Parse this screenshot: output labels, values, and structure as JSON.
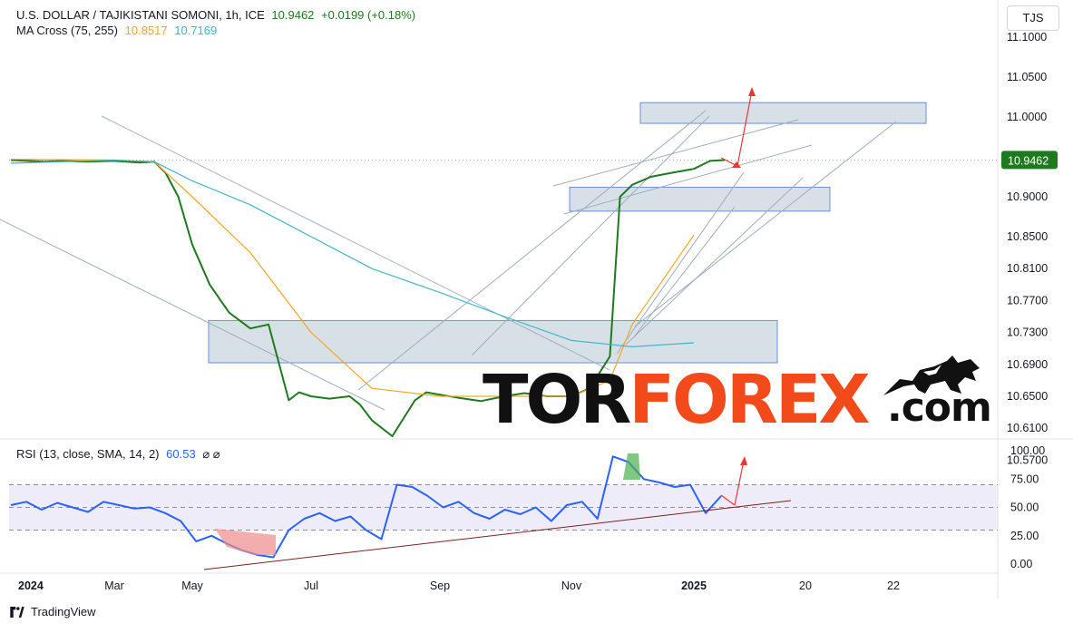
{
  "legend": {
    "symbol": "U.S. DOLLAR / TAJIKISTANI SOMONI, 1h, ICE",
    "last": "10.9462",
    "change": "+0.0199 (+0.18%)",
    "ma_label": "MA Cross (75, 255)",
    "ma_fast": "10.8517",
    "ma_slow": "10.7169",
    "rsi_label": "RSI (13, close, SMA, 14, 2)",
    "rsi_value": "60.53",
    "rsi_extra": "⌀ ⌀"
  },
  "currency_button": "TJS",
  "brand": "TradingView",
  "watermark": {
    "tor": "TOR",
    "forex": "FOREX",
    "com": ".com"
  },
  "colors": {
    "price": "#1e7a1e",
    "ma_fast": "#f5a623",
    "ma_slow": "#3fb6c8",
    "rsi": "#2962ff",
    "trendline": "#9eadbd",
    "zone": "#b8c7d3",
    "arrow": "#e53935",
    "rsi_trend": "#7b1f1f"
  },
  "chart_data": [
    {
      "type": "line",
      "title": "U.S. DOLLAR / TAJIKISTANI SOMONI, 1h, ICE",
      "x_ticks": [
        "2024",
        "Mar",
        "May",
        "Jul",
        "Sep",
        "Nov",
        "2025",
        "20",
        "22"
      ],
      "y_ticks": [
        "11.1000",
        "11.0500",
        "11.0000",
        "10.9000",
        "10.8500",
        "10.8100",
        "10.7700",
        "10.7300",
        "10.6900",
        "10.6500",
        "10.6100",
        "10.5700"
      ],
      "last_price_label": "10.9462",
      "series": [
        {
          "name": "U.S. DOLLAR / TAJIKISTANI SOMONI",
          "x": [
            "2024-01",
            "2024-01-20",
            "2024-02",
            "2024-02-15",
            "2024-03",
            "2024-03-20",
            "2024-04",
            "2024-04-10",
            "2024-04-20",
            "2024-05",
            "2024-05-10",
            "2024-05-20",
            "2024-06",
            "2024-06-10",
            "2024-06-20",
            "2024-06-25",
            "2024-07",
            "2024-07-10",
            "2024-07-20",
            "2024-07-25",
            "2024-08",
            "2024-08-10",
            "2024-08-20",
            "2024-08-25",
            "2024-09",
            "2024-09-10",
            "2024-09-20",
            "2024-10",
            "2024-10-10",
            "2024-10-20",
            "2024-11",
            "2024-11-10",
            "2024-11-20",
            "2024-11-25",
            "2024-12",
            "2024-12-10",
            "2024-12-20",
            "2025-01",
            "2025-01-10",
            "2025-01-18"
          ],
          "values": [
            10.946,
            10.944,
            10.945,
            10.944,
            10.945,
            10.943,
            10.944,
            10.93,
            10.9,
            10.84,
            10.79,
            10.755,
            10.735,
            10.74,
            10.645,
            10.655,
            10.65,
            10.647,
            10.65,
            10.64,
            10.62,
            10.6,
            10.645,
            10.655,
            10.652,
            10.648,
            10.644,
            10.65,
            10.654,
            10.65,
            10.65,
            10.66,
            10.7,
            10.9,
            10.915,
            10.925,
            10.93,
            10.935,
            10.945,
            10.946
          ]
        },
        {
          "name": "MA 75",
          "x": [
            "2024-01",
            "2024-03",
            "2024-04",
            "2024-05",
            "2024-06",
            "2024-07",
            "2024-08",
            "2024-09",
            "2024-10",
            "2024-11",
            "2024-11-20",
            "2024-12",
            "2025-01"
          ],
          "values": [
            10.947,
            10.946,
            10.944,
            10.9,
            10.83,
            10.73,
            10.66,
            10.65,
            10.65,
            10.65,
            10.67,
            10.74,
            10.852
          ]
        },
        {
          "name": "MA 255",
          "x": [
            "2024-01",
            "2024-03",
            "2024-04",
            "2024-05",
            "2024-06",
            "2024-07",
            "2024-08",
            "2024-09",
            "2024-10",
            "2024-11",
            "2024-12",
            "2025-01"
          ],
          "values": [
            10.942,
            10.946,
            10.944,
            10.92,
            10.89,
            10.85,
            10.81,
            10.78,
            10.75,
            10.72,
            10.712,
            10.717
          ]
        }
      ],
      "zones": [
        {
          "from": 10.992,
          "to": 11.018
        },
        {
          "from": 10.882,
          "to": 10.912
        },
        {
          "from": 10.692,
          "to": 10.745
        }
      ]
    },
    {
      "type": "line",
      "title": "RSI (13, close, SMA, 14, 2)",
      "y_ticks": [
        "100.00",
        "75.00",
        "50.00",
        "25.00",
        "0.00"
      ],
      "ylim": [
        0,
        100
      ],
      "bands": [
        30,
        50,
        70
      ],
      "series": [
        {
          "name": "RSI",
          "values": [
            52,
            55,
            48,
            54,
            50,
            46,
            55,
            52,
            49,
            50,
            45,
            38,
            20,
            25,
            18,
            12,
            8,
            6,
            30,
            40,
            45,
            38,
            42,
            30,
            22,
            70,
            68,
            60,
            50,
            55,
            45,
            40,
            48,
            44,
            50,
            38,
            52,
            55,
            40,
            95,
            90,
            75,
            72,
            68,
            70,
            45,
            60
          ]
        }
      ]
    }
  ]
}
